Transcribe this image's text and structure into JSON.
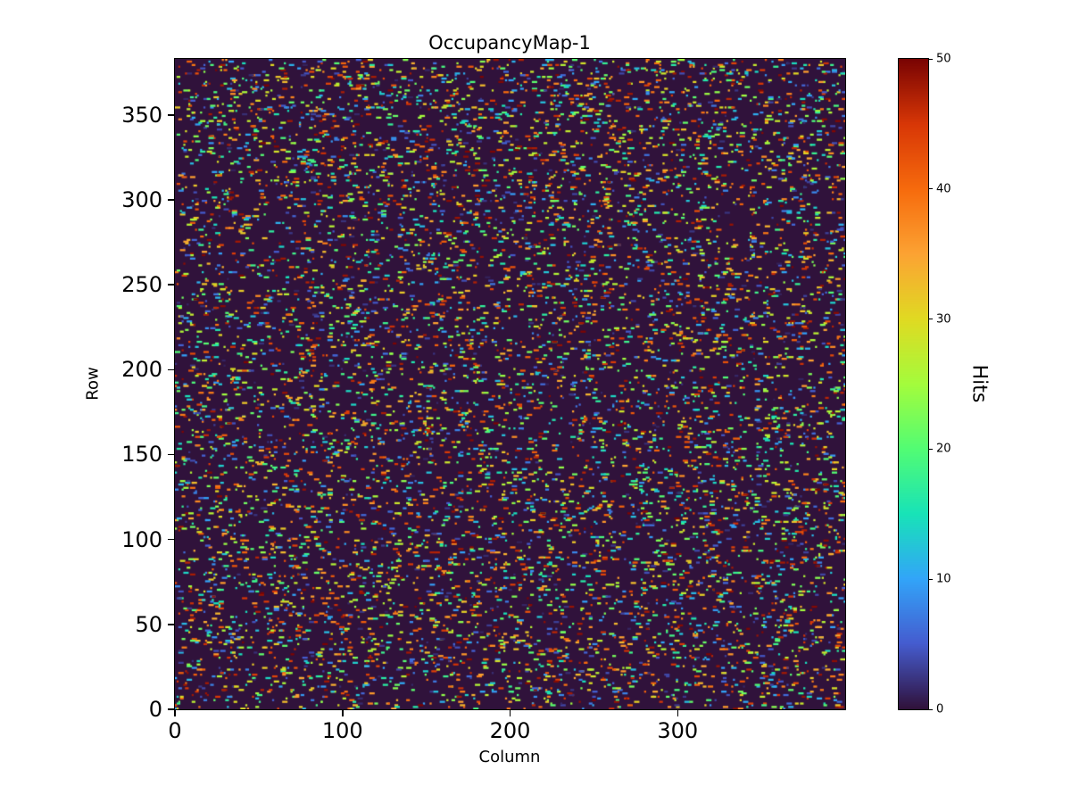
{
  "chart_data": {
    "type": "heatmap",
    "title": "OccupancyMap-1",
    "xlabel": "Column",
    "ylabel": "Row",
    "x_range": [
      0,
      400
    ],
    "y_range": [
      0,
      383
    ],
    "x_ticks": [
      0,
      100,
      200,
      300
    ],
    "y_ticks": [
      0,
      50,
      100,
      150,
      200,
      250,
      300,
      350
    ],
    "grid": false,
    "legend": "none",
    "plot_background_hex": "#30123b",
    "colorbar": {
      "label": "Hits",
      "ticks": [
        0,
        10,
        20,
        30,
        40,
        50
      ],
      "range": [
        0,
        50
      ],
      "colormap": "turbo",
      "position": "right"
    },
    "data_description": "Sparse random occupancy map: background value 0 (dark purple) over a 400-column by 383-row grid; roughly 6% of cells contain hits with values spread uniformly between 1 and 50, appearing as short horizontal colored speckles (blue/cyan/green/yellow/orange/red).",
    "generator": {
      "seed": 20240605,
      "density": 0.06,
      "value_min": 1,
      "value_max": 50,
      "streak_max_cells": 3
    },
    "colormap_stops": [
      {
        "t": 0.0,
        "rgb": [
          48,
          18,
          59
        ]
      },
      {
        "t": 0.1,
        "rgb": [
          69,
          92,
          207
        ]
      },
      {
        "t": 0.2,
        "rgb": [
          50,
          165,
          249
        ]
      },
      {
        "t": 0.3,
        "rgb": [
          24,
          227,
          184
        ]
      },
      {
        "t": 0.4,
        "rgb": [
          82,
          252,
          116
        ]
      },
      {
        "t": 0.5,
        "rgb": [
          164,
          252,
          60
        ]
      },
      {
        "t": 0.6,
        "rgb": [
          224,
          218,
          34
        ]
      },
      {
        "t": 0.7,
        "rgb": [
          252,
          163,
          51
        ]
      },
      {
        "t": 0.8,
        "rgb": [
          246,
          107,
          13
        ]
      },
      {
        "t": 0.9,
        "rgb": [
          216,
          55,
          6
        ]
      },
      {
        "t": 1.0,
        "rgb": [
          122,
          4,
          3
        ]
      }
    ]
  }
}
